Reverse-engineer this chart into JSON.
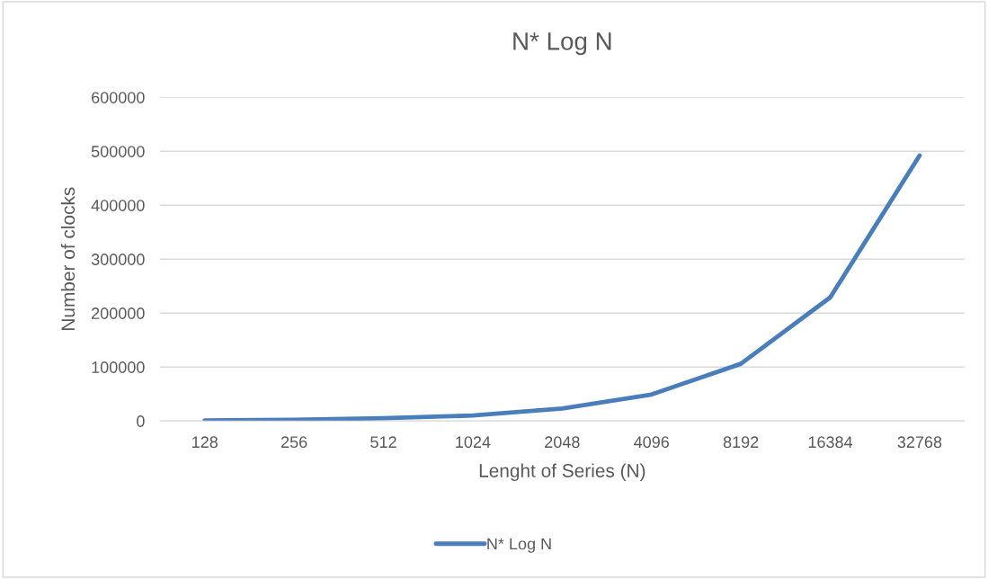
{
  "chart_data": {
    "type": "line",
    "title": "N* Log N",
    "xlabel": "Lenght of Series (N)",
    "ylabel": "Number of clocks",
    "categories": [
      "128",
      "256",
      "512",
      "1024",
      "2048",
      "4096",
      "8192",
      "16384",
      "32768"
    ],
    "series": [
      {
        "name": "N* Log N",
        "color": "#4a7ebb",
        "values": [
          1000,
          2000,
          5000,
          10000,
          23000,
          49000,
          106000,
          229000,
          492000
        ]
      }
    ],
    "ylim": [
      0,
      600000
    ],
    "yticks": [
      0,
      100000,
      200000,
      300000,
      400000,
      500000,
      600000
    ],
    "grid": "y",
    "legend": "bottom",
    "marker": "none",
    "line_style": "solid"
  }
}
